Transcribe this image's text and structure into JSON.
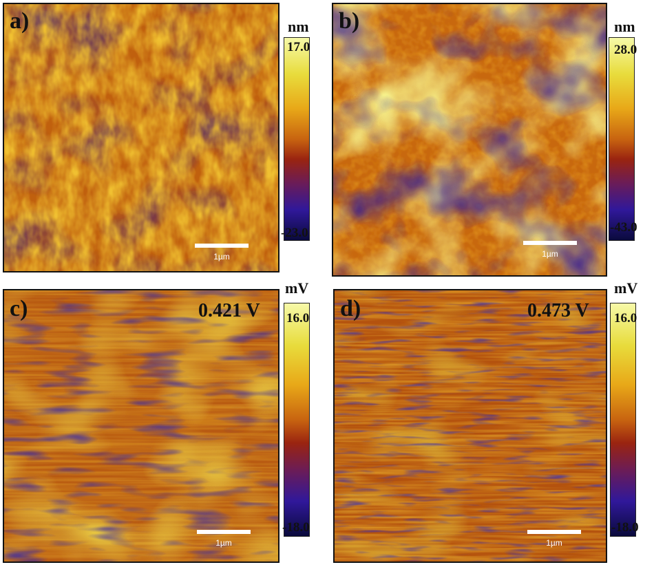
{
  "panels": [
    {
      "letter": "a)",
      "scale": "1µm",
      "unit": "nm",
      "max": "17.0",
      "min": "-23.0",
      "voltage": ""
    },
    {
      "letter": "b)",
      "scale": "1µm",
      "unit": "nm",
      "max": "28.0",
      "min": "-43.0",
      "voltage": ""
    },
    {
      "letter": "c)",
      "scale": "1µm",
      "unit": "mV",
      "max": "16.0",
      "min": "-18.0",
      "voltage": "0.421 V"
    },
    {
      "letter": "d)",
      "scale": "1µm",
      "unit": "mV",
      "max": "16.0",
      "min": "-18.0",
      "voltage": "0.473 V"
    }
  ]
}
